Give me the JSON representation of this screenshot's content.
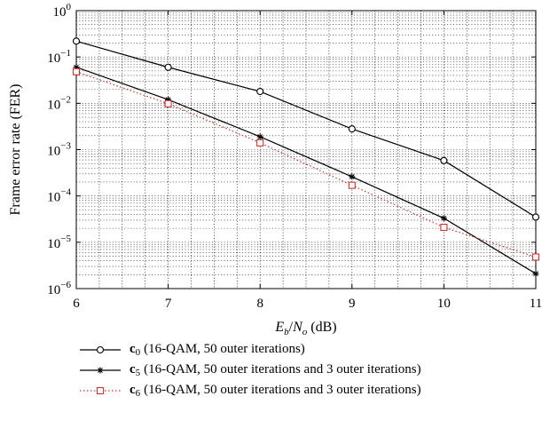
{
  "chart_data": {
    "type": "line",
    "xlabel": {
      "base_E": "E",
      "sub_b": "b",
      "slash": "/",
      "base_N": "N",
      "sub_o": "o",
      "unit": " (dB)"
    },
    "ylabel": "Frame error rate (FER)",
    "x": [
      6,
      7,
      8,
      9,
      10,
      11
    ],
    "xlim": [
      6,
      11
    ],
    "ylim": [
      1e-06,
      1
    ],
    "yscale": "log",
    "grid": true,
    "x_tick_labels": [
      "6",
      "7",
      "8",
      "9",
      "10",
      "11"
    ],
    "y_tick_labels": [
      {
        "base": "10",
        "exp": "0"
      },
      {
        "base": "10",
        "exp": "−1"
      },
      {
        "base": "10",
        "exp": "−2"
      },
      {
        "base": "10",
        "exp": "−3"
      },
      {
        "base": "10",
        "exp": "−4"
      },
      {
        "base": "10",
        "exp": "−5"
      },
      {
        "base": "10",
        "exp": "−6"
      }
    ],
    "legend_position": "below",
    "series": [
      {
        "symbol": "c",
        "subscript": "0",
        "name": "(16-QAM, 50 outer iterations)",
        "color": "#000000",
        "marker": "circle",
        "line": "solid",
        "values": [
          0.22,
          0.06,
          0.018,
          0.0028,
          0.00058,
          3.5e-05
        ]
      },
      {
        "symbol": "c",
        "subscript": "5",
        "name": "(16-QAM, 50 outer iterations and 3 outer iterations)",
        "color": "#000000",
        "marker": "star",
        "line": "solid",
        "values": [
          0.06,
          0.012,
          0.0019,
          0.00026,
          3.3e-05,
          2.1e-06
        ]
      },
      {
        "symbol": "c",
        "subscript": "6",
        "name": "(16-QAM, 50 outer iterations and 3 outer iterations)",
        "color": "#d0312d",
        "marker": "square",
        "line": "dotted",
        "values": [
          0.048,
          0.0098,
          0.0014,
          0.00017,
          2.1e-05,
          4.8e-06
        ]
      }
    ]
  }
}
